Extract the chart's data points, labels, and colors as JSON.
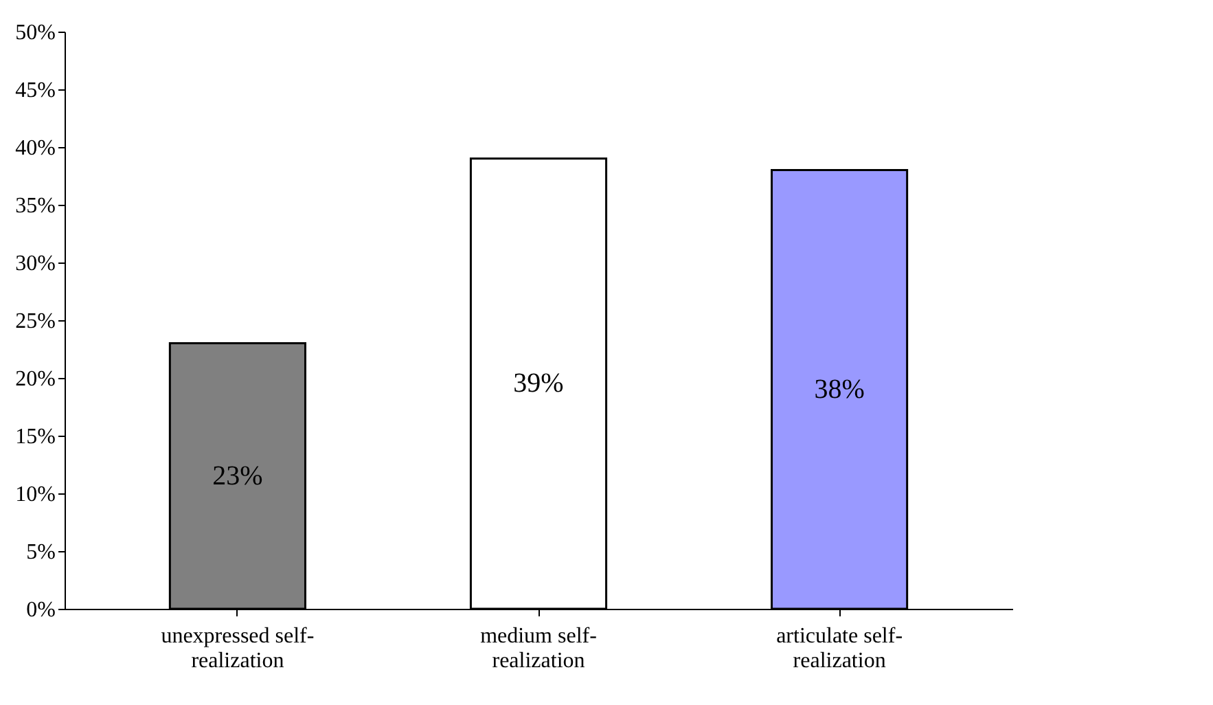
{
  "chart_data": {
    "type": "bar",
    "categories": [
      "unexpressed self-realization",
      "medium self-realization",
      "articulate self-realization"
    ],
    "values": [
      23,
      39,
      38
    ],
    "colors": [
      "#808080",
      "#ffffff",
      "#9999ff"
    ],
    "value_labels": [
      "23%",
      "39%",
      "38%"
    ],
    "ylim": [
      0,
      50
    ],
    "yticks": [
      {
        "value": 0,
        "label": "0%"
      },
      {
        "value": 5,
        "label": "5%"
      },
      {
        "value": 10,
        "label": "10%"
      },
      {
        "value": 15,
        "label": "15%"
      },
      {
        "value": 20,
        "label": "20%"
      },
      {
        "value": 25,
        "label": "25%"
      },
      {
        "value": 30,
        "label": "30%"
      },
      {
        "value": 35,
        "label": "35%"
      },
      {
        "value": 40,
        "label": "40%"
      },
      {
        "value": 45,
        "label": "45%"
      },
      {
        "value": 50,
        "label": "50%"
      }
    ],
    "grid": false
  }
}
